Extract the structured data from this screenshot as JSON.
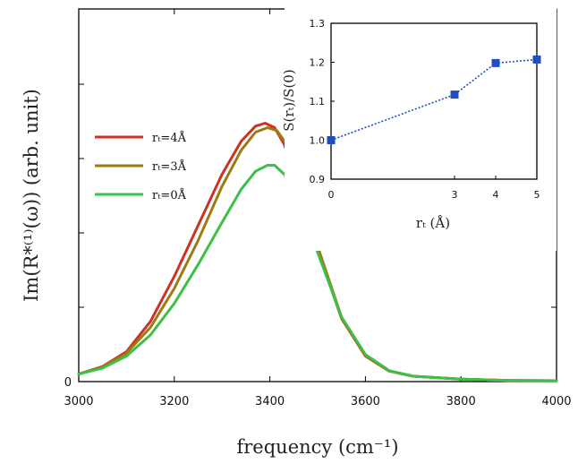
{
  "chart_data": [
    {
      "type": "line",
      "title": "",
      "xlabel": "frequency (cm⁻¹)",
      "ylabel": "Im(R*⁽¹⁾(ω))  (arb. unit)",
      "xlim": [
        3000,
        4000
      ],
      "ylim": [
        0,
        1.24
      ],
      "xticks": [
        "3000",
        "3200",
        "3400",
        "3600",
        "3800",
        "4000"
      ],
      "yticks": [
        "0"
      ],
      "legend_position": "left",
      "series": [
        {
          "name": "rₜ=4Å",
          "color": "#cc3322",
          "x": [
            3000,
            3050,
            3100,
            3150,
            3200,
            3250,
            3300,
            3340,
            3370,
            3390,
            3410,
            3430,
            3460,
            3500,
            3550,
            3600,
            3650,
            3700,
            3800,
            3900,
            4000
          ],
          "y": [
            0.025,
            0.05,
            0.1,
            0.2,
            0.35,
            0.52,
            0.69,
            0.8,
            0.85,
            0.86,
            0.845,
            0.79,
            0.66,
            0.44,
            0.21,
            0.085,
            0.035,
            0.018,
            0.008,
            0.004,
            0.003
          ]
        },
        {
          "name": "rₜ=3Å",
          "color": "#9e7a12",
          "x": [
            3000,
            3050,
            3100,
            3150,
            3200,
            3250,
            3300,
            3340,
            3370,
            3395,
            3415,
            3435,
            3460,
            3500,
            3550,
            3600,
            3650,
            3700,
            3800,
            3900,
            4000
          ],
          "y": [
            0.025,
            0.048,
            0.095,
            0.18,
            0.31,
            0.47,
            0.65,
            0.77,
            0.83,
            0.845,
            0.835,
            0.79,
            0.68,
            0.45,
            0.215,
            0.088,
            0.036,
            0.018,
            0.008,
            0.004,
            0.003
          ]
        },
        {
          "name": "rₜ=0Å",
          "color": "#3cc047",
          "x": [
            3000,
            3050,
            3100,
            3150,
            3200,
            3250,
            3300,
            3340,
            3370,
            3395,
            3410,
            3430,
            3460,
            3500,
            3550,
            3600,
            3650,
            3700,
            3800,
            3900,
            4000
          ],
          "y": [
            0.025,
            0.045,
            0.085,
            0.155,
            0.26,
            0.39,
            0.53,
            0.64,
            0.7,
            0.72,
            0.72,
            0.69,
            0.61,
            0.43,
            0.215,
            0.09,
            0.036,
            0.018,
            0.008,
            0.004,
            0.003
          ]
        }
      ]
    },
    {
      "type": "line",
      "title": "",
      "xlabel": "rₜ (Å)",
      "ylabel": "S(rₜ)/S(0)",
      "xlim": [
        0,
        5
      ],
      "ylim": [
        0.9,
        1.3
      ],
      "xticks": [
        "0",
        "3",
        "4",
        "5"
      ],
      "yticks": [
        "0.9",
        "1.0",
        "1.1",
        "1.2",
        "1.3"
      ],
      "series": [
        {
          "color": "#1f4fbf",
          "x": [
            0,
            3,
            4,
            5
          ],
          "y": [
            1.0,
            1.117,
            1.198,
            1.207
          ]
        }
      ]
    }
  ]
}
